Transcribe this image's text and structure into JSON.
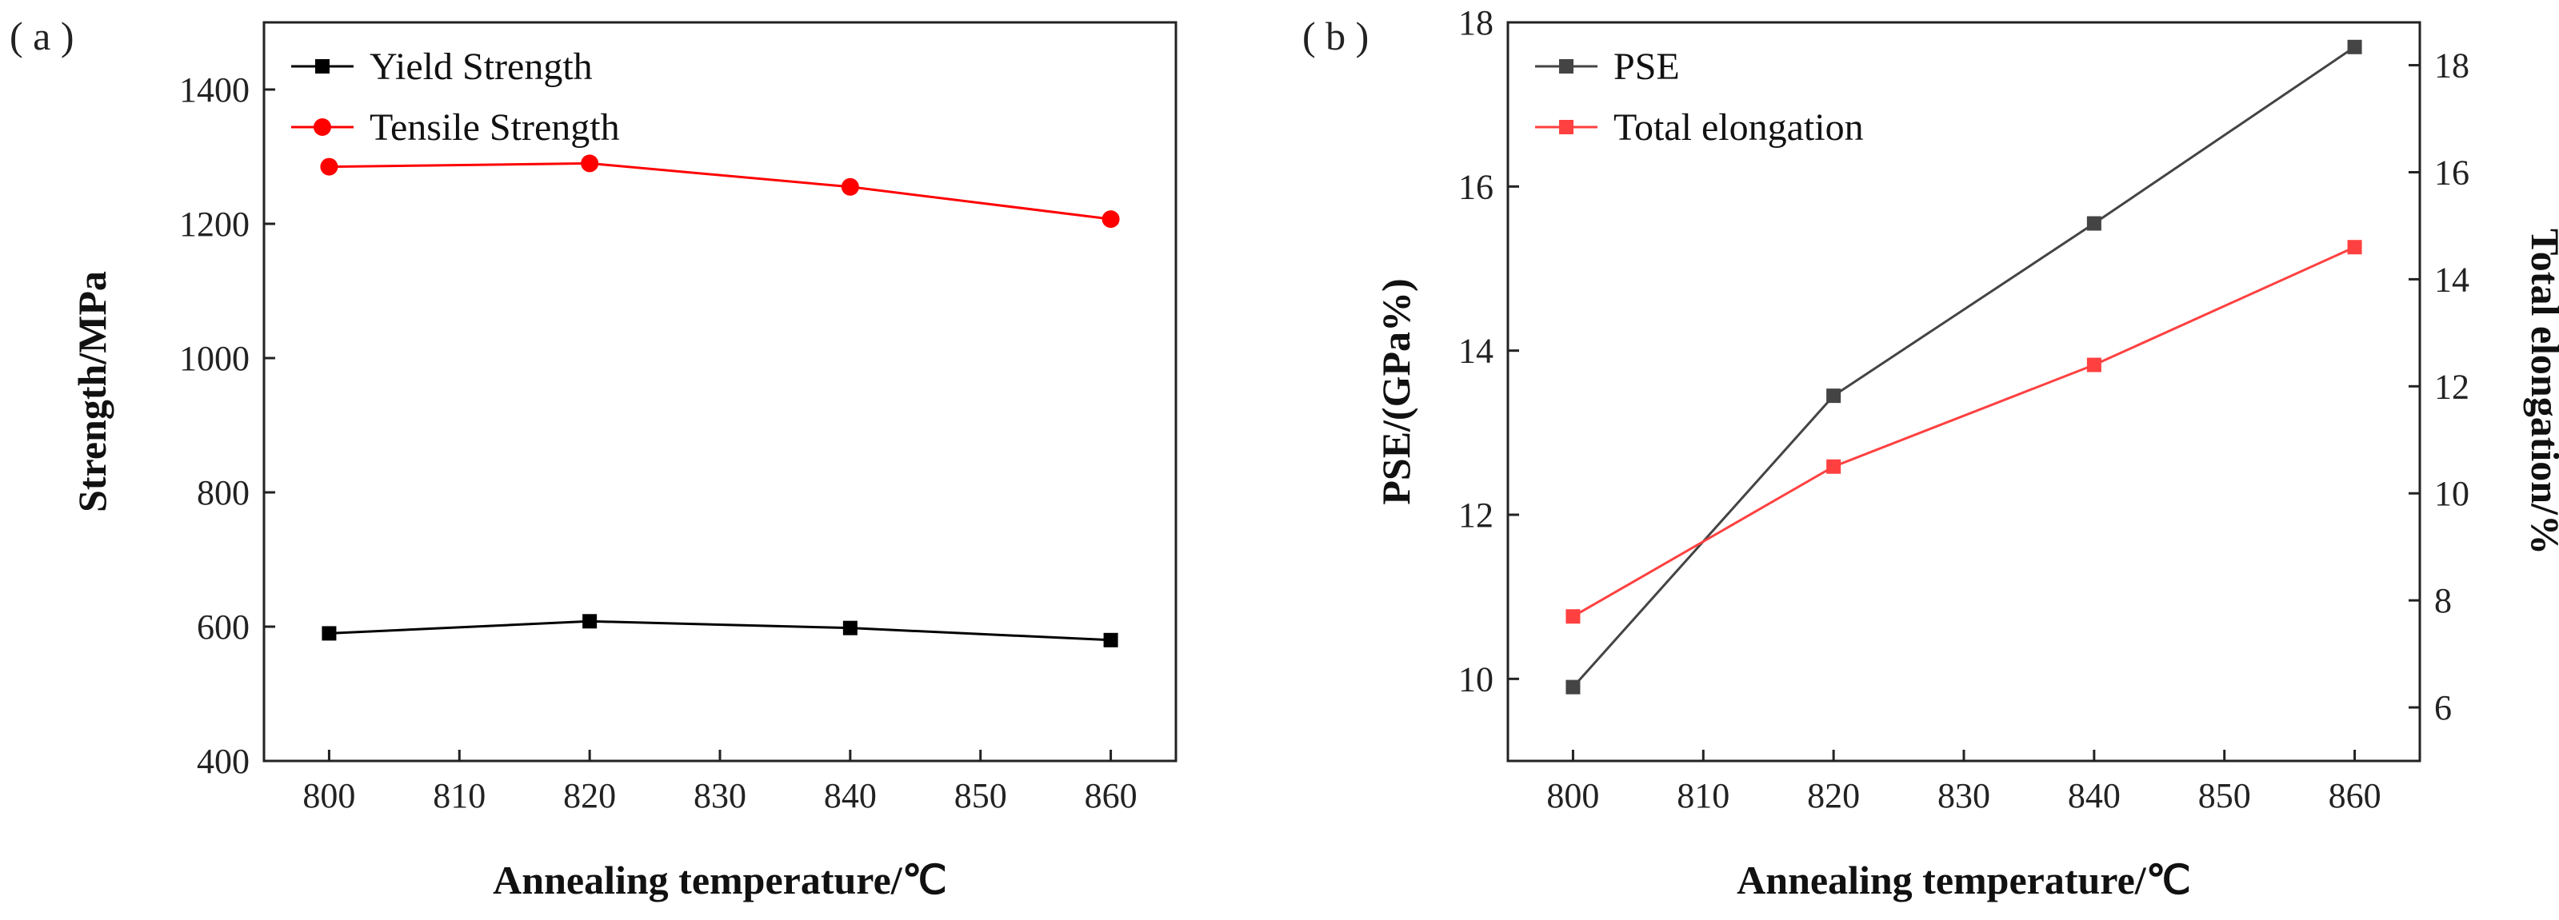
{
  "chart_data": [
    {
      "type": "line",
      "panel_label": "( a )",
      "xlabel": "Annealing temperature/℃",
      "ylabel": "Strength/MPa",
      "xlim": [
        795,
        865
      ],
      "ylim": [
        400,
        1500
      ],
      "xticks": [
        800,
        810,
        820,
        830,
        840,
        850,
        860
      ],
      "yticks": [
        400,
        600,
        800,
        1000,
        1200,
        1400
      ],
      "grid": false,
      "legend": "top-left",
      "x": [
        800,
        820,
        840,
        860
      ],
      "series": [
        {
          "name": "Yield Strength",
          "values": [
            590,
            608,
            598,
            580
          ],
          "color": "#000000",
          "marker": "square",
          "axis": "left"
        },
        {
          "name": "Tensile Strength",
          "values": [
            1285,
            1290,
            1255,
            1207
          ],
          "color": "#ff0000",
          "marker": "circle",
          "axis": "left"
        }
      ]
    },
    {
      "type": "line",
      "panel_label": "( b )",
      "xlabel": "Annealing temperature/℃",
      "ylabel": "PSE/(GPa%)",
      "y2label": "Total elongation/%",
      "xlim": [
        795,
        865
      ],
      "ylim": [
        9,
        18
      ],
      "y2lim": [
        5,
        18.8
      ],
      "xticks": [
        800,
        810,
        820,
        830,
        840,
        850,
        860
      ],
      "yticks": [
        10,
        12,
        14,
        16,
        18
      ],
      "y2ticks": [
        6,
        8,
        10,
        12,
        14,
        16,
        18
      ],
      "grid": false,
      "legend": "top-left",
      "x": [
        800,
        820,
        840,
        860
      ],
      "series": [
        {
          "name": "PSE",
          "values": [
            9.9,
            13.45,
            15.55,
            17.7
          ],
          "color": "#444444",
          "marker": "square",
          "axis": "left"
        },
        {
          "name": "Total elongation",
          "values": [
            7.7,
            10.5,
            12.4,
            14.6
          ],
          "color": "#ff4040",
          "marker": "square",
          "axis": "right"
        }
      ]
    }
  ]
}
